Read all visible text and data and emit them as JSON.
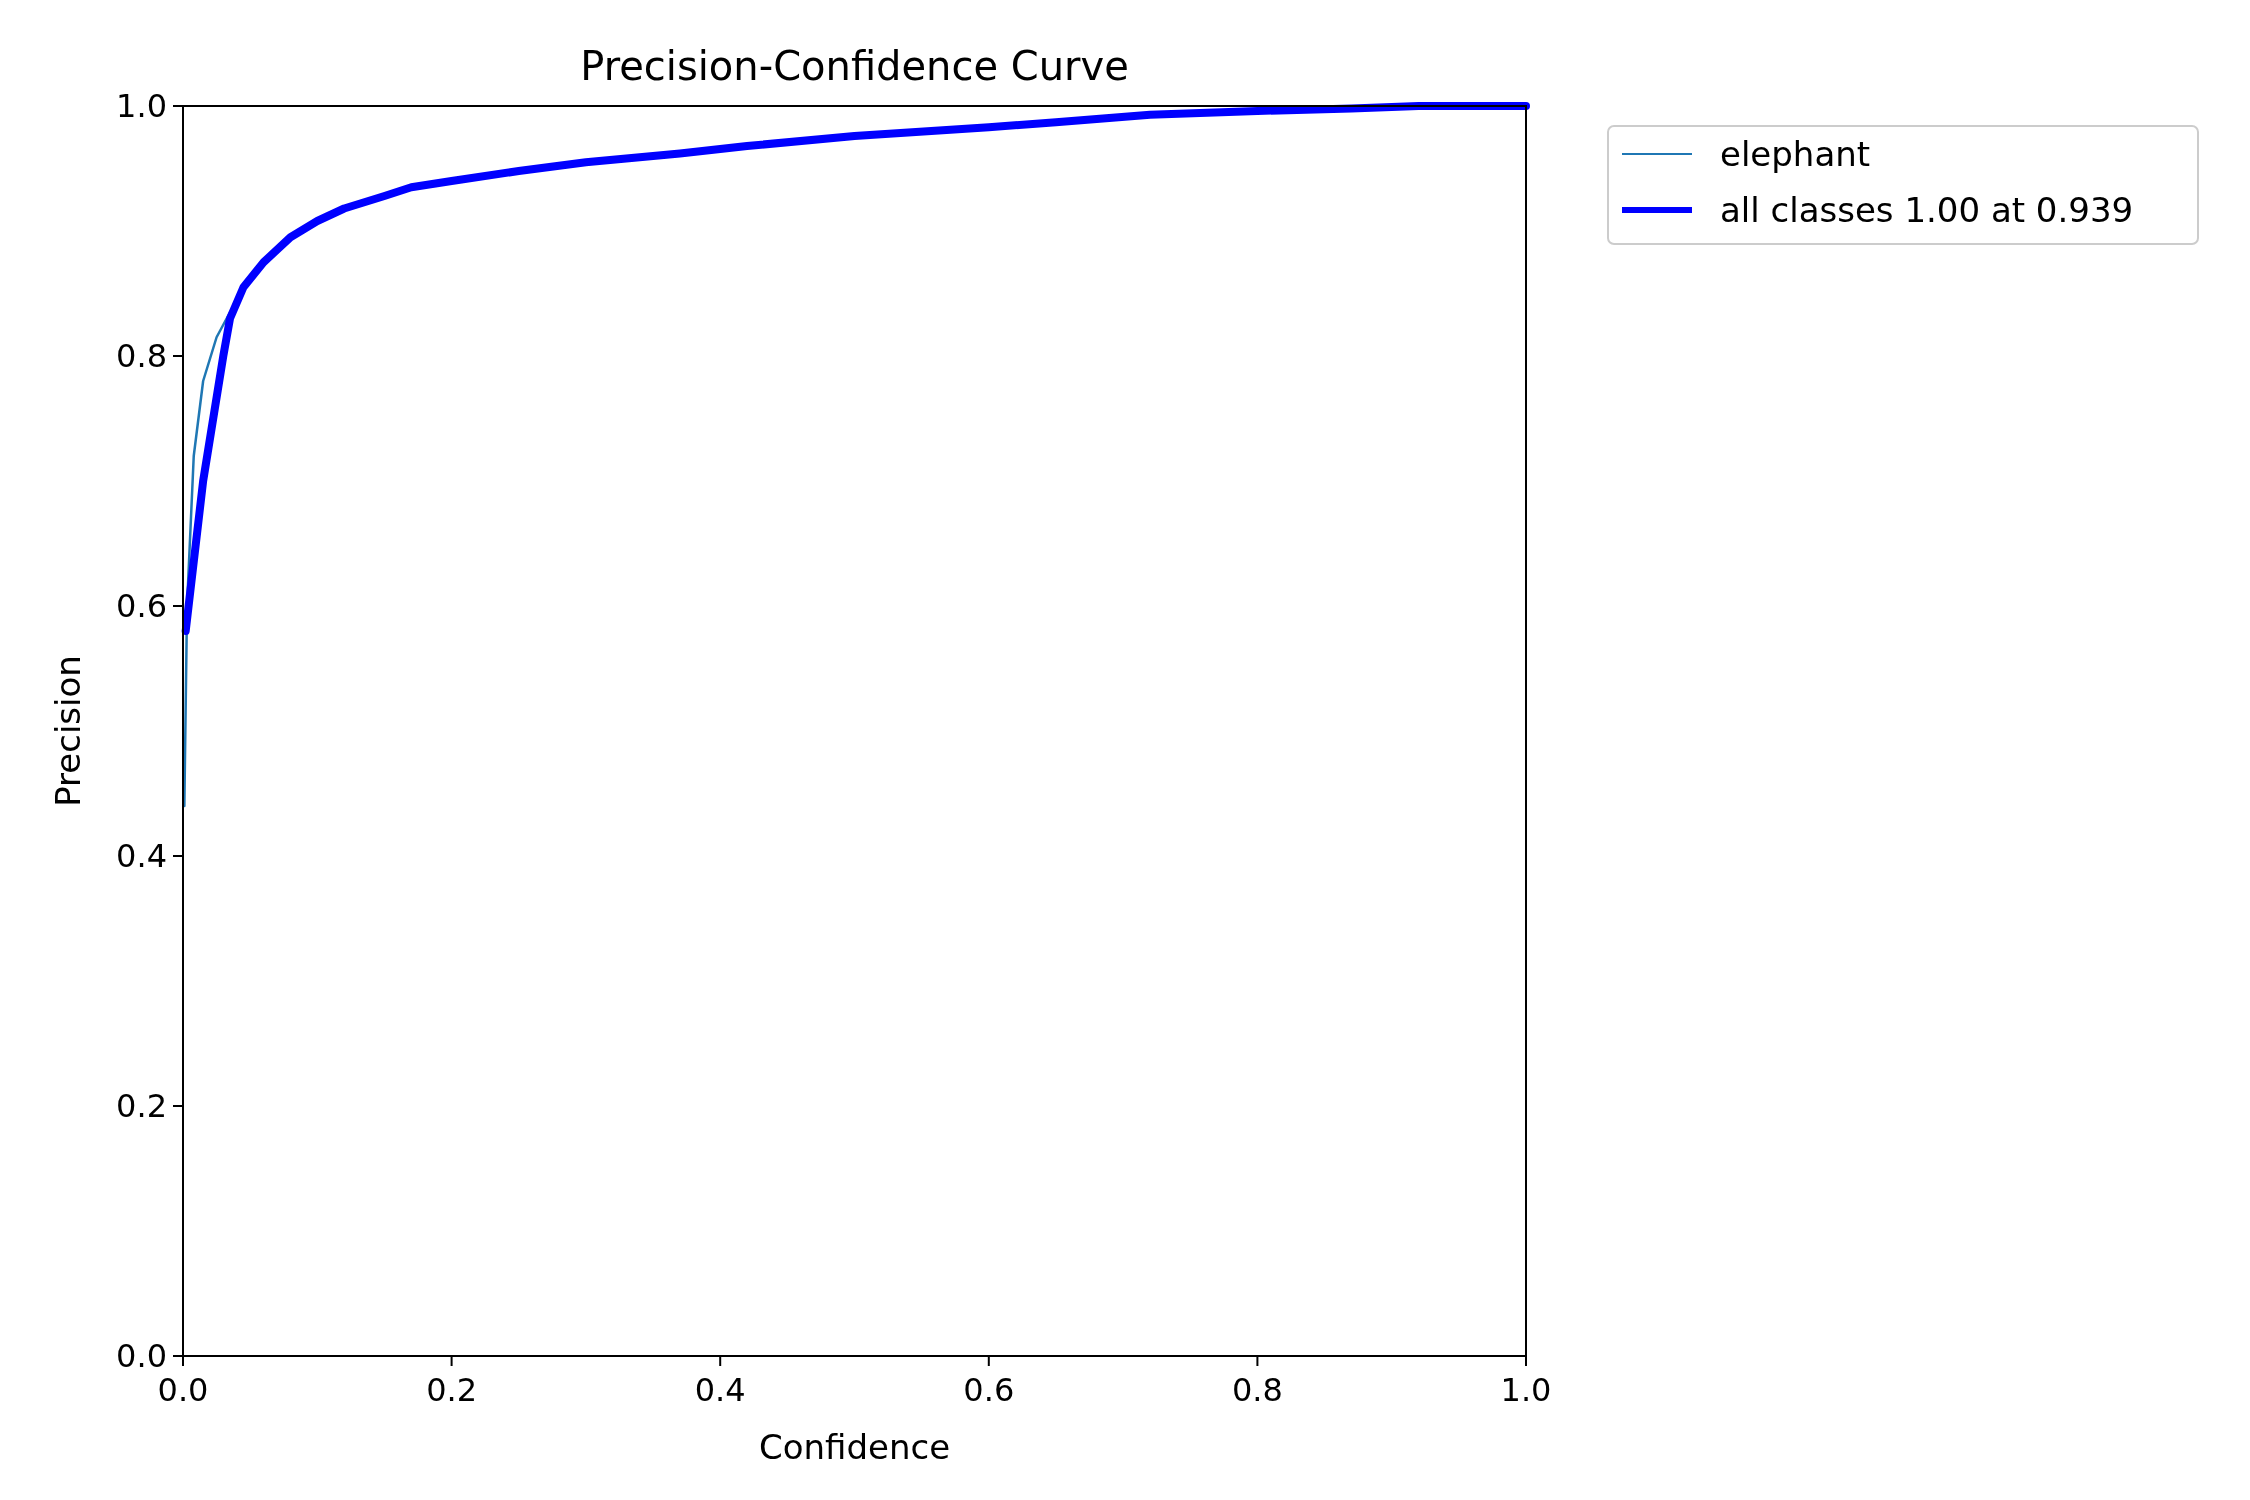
{
  "chart_data": {
    "type": "line",
    "title": "Precision-Confidence Curve",
    "xlabel": "Confidence",
    "ylabel": "Precision",
    "xlim": [
      0,
      1
    ],
    "ylim": [
      0,
      1
    ],
    "xticks": [
      {
        "value": 0,
        "label": "0.0"
      },
      0.2,
      0.4,
      0.6,
      0.8,
      {
        "value": 1,
        "label": "1.0"
      }
    ],
    "yticks": [
      {
        "value": 0,
        "label": "0.0"
      },
      0.2,
      0.4,
      0.6,
      0.8,
      {
        "value": 1,
        "label": "1.0"
      }
    ],
    "grid": false,
    "legend": "top right",
    "marker": "none",
    "line_style": "solid",
    "series": [
      {
        "name": "elephant",
        "color": "#1f77b4",
        "x": [
          0.001,
          0.003,
          0.008,
          0.015,
          0.025,
          0.035
        ],
        "values": [
          0.44,
          0.6,
          0.72,
          0.78,
          0.815,
          0.835
        ]
      },
      {
        "name": "all classes 1.00 at 0.939",
        "color": "#0000ff",
        "x": [
          0.002,
          0.015,
          0.03,
          0.035,
          0.045,
          0.06,
          0.08,
          0.1,
          0.12,
          0.15,
          0.17,
          0.2,
          0.25,
          0.3,
          0.37,
          0.42,
          0.5,
          0.6,
          0.65,
          0.72,
          0.8,
          0.87,
          0.92,
          1.0
        ],
        "values": [
          0.58,
          0.7,
          0.8,
          0.83,
          0.855,
          0.875,
          0.895,
          0.908,
          0.918,
          0.928,
          0.935,
          0.94,
          0.948,
          0.955,
          0.962,
          0.968,
          0.976,
          0.983,
          0.987,
          0.993,
          0.996,
          0.998,
          1.0,
          1.0
        ]
      }
    ]
  }
}
